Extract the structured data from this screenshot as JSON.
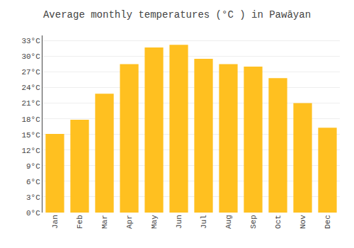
{
  "chart_data": {
    "type": "bar",
    "title": "Average monthly temperatures (°C ) in Pawāyan",
    "categories": [
      "Jan",
      "Feb",
      "Mar",
      "Apr",
      "May",
      "Jun",
      "Jul",
      "Aug",
      "Sep",
      "Oct",
      "Nov",
      "Dec"
    ],
    "values": [
      15.1,
      17.8,
      22.8,
      28.5,
      31.7,
      32.2,
      29.5,
      28.5,
      28.0,
      25.8,
      21.0,
      16.3
    ],
    "color": "#FFC020",
    "ylim": [
      0,
      34
    ],
    "yticks": [
      {
        "value": 0,
        "label": "0°C"
      },
      {
        "value": 3,
        "label": "3°C"
      },
      {
        "value": 6,
        "label": "6°C"
      },
      {
        "value": 9,
        "label": "9°C"
      },
      {
        "value": 12,
        "label": "12°C"
      },
      {
        "value": 15,
        "label": "15°C"
      },
      {
        "value": 18,
        "label": "18°C"
      },
      {
        "value": 21,
        "label": "21°C"
      },
      {
        "value": 24,
        "label": "24°C"
      },
      {
        "value": 27,
        "label": "27°C"
      },
      {
        "value": 30,
        "label": "30°C"
      },
      {
        "value": 33,
        "label": "33°C"
      }
    ],
    "grid": true
  }
}
